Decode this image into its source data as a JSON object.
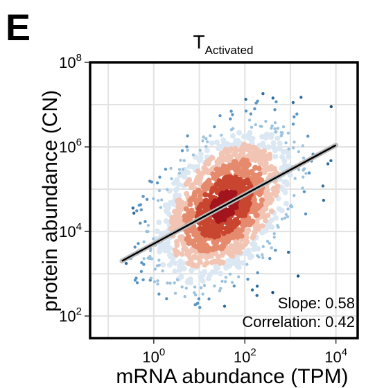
{
  "panel_label": "E",
  "chart_data": {
    "type": "scatter",
    "title": "T",
    "title_subscript": "Activated",
    "xlabel": "mRNA abundance (TPM)",
    "ylabel": "protein abundance (CN)",
    "x_scale": "log10",
    "y_scale": "log10",
    "xlim": [
      0.04,
      30000
    ],
    "ylim": [
      30,
      100000000
    ],
    "x_ticks": [
      {
        "value": 1,
        "base": "10",
        "exp": "0"
      },
      {
        "value": 100,
        "base": "10",
        "exp": "2"
      },
      {
        "value": 10000,
        "base": "10",
        "exp": "4"
      }
    ],
    "y_ticks": [
      {
        "value": 100,
        "base": "10",
        "exp": "2"
      },
      {
        "value": 10000,
        "base": "10",
        "exp": "4"
      },
      {
        "value": 1000000,
        "base": "10",
        "exp": "6"
      },
      {
        "value": 100000000,
        "base": "10",
        "exp": "8"
      }
    ],
    "grid": true,
    "point_color_low": "#1b4f7a",
    "point_color_high": "#a3151d",
    "fit_line": {
      "x": [
        0.2,
        10000
      ],
      "y": [
        2000,
        1100000
      ],
      "color": "#000000"
    },
    "annotations": [
      {
        "text": "Slope: 0.58"
      },
      {
        "text": "Correlation: 0.42"
      }
    ]
  }
}
